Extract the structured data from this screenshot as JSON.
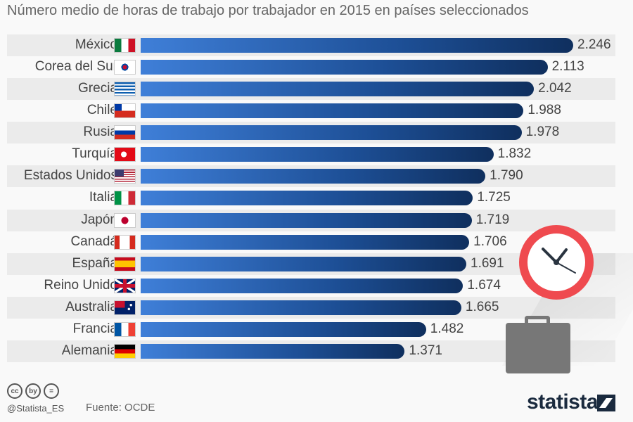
{
  "chart_data": {
    "type": "bar",
    "orientation": "horizontal",
    "title": "Número medio de horas de trabajo por trabajador en 2015 en países seleccionados",
    "categories": [
      "México",
      "Corea del Sur",
      "Grecia",
      "Chile",
      "Rusia",
      "Turquía",
      "Estados Unidos",
      "Italia",
      "Japón",
      "Canadá",
      "España",
      "Reino Unido",
      "Australia",
      "Francia",
      "Alemania"
    ],
    "values": [
      2246,
      2113,
      2042,
      1988,
      1978,
      1832,
      1790,
      1725,
      1719,
      1706,
      1691,
      1674,
      1665,
      1482,
      1371
    ],
    "value_labels": [
      "2.246",
      "2.113",
      "2.042",
      "1.988",
      "1.978",
      "1.832",
      "1.790",
      "1.725",
      "1.719",
      "1.706",
      "1.691",
      "1.674",
      "1.665",
      "1.482",
      "1.371"
    ],
    "flags": [
      "flag-mx",
      "flag-kr",
      "flag-gr",
      "flag-cl",
      "flag-ru",
      "flag-tr",
      "flag-us",
      "flag-it",
      "flag-jp",
      "flag-ca",
      "flag-es",
      "flag-gb",
      "flag-au",
      "flag-fr",
      "flag-de"
    ],
    "xlim": [
      0,
      2246
    ],
    "bar_color": "#1d4f96"
  },
  "footer": {
    "handle": "@Statista_ES",
    "source": "Fuente: OCDE",
    "logo": "statista",
    "cc_icons": [
      "cc",
      "by",
      "="
    ]
  }
}
